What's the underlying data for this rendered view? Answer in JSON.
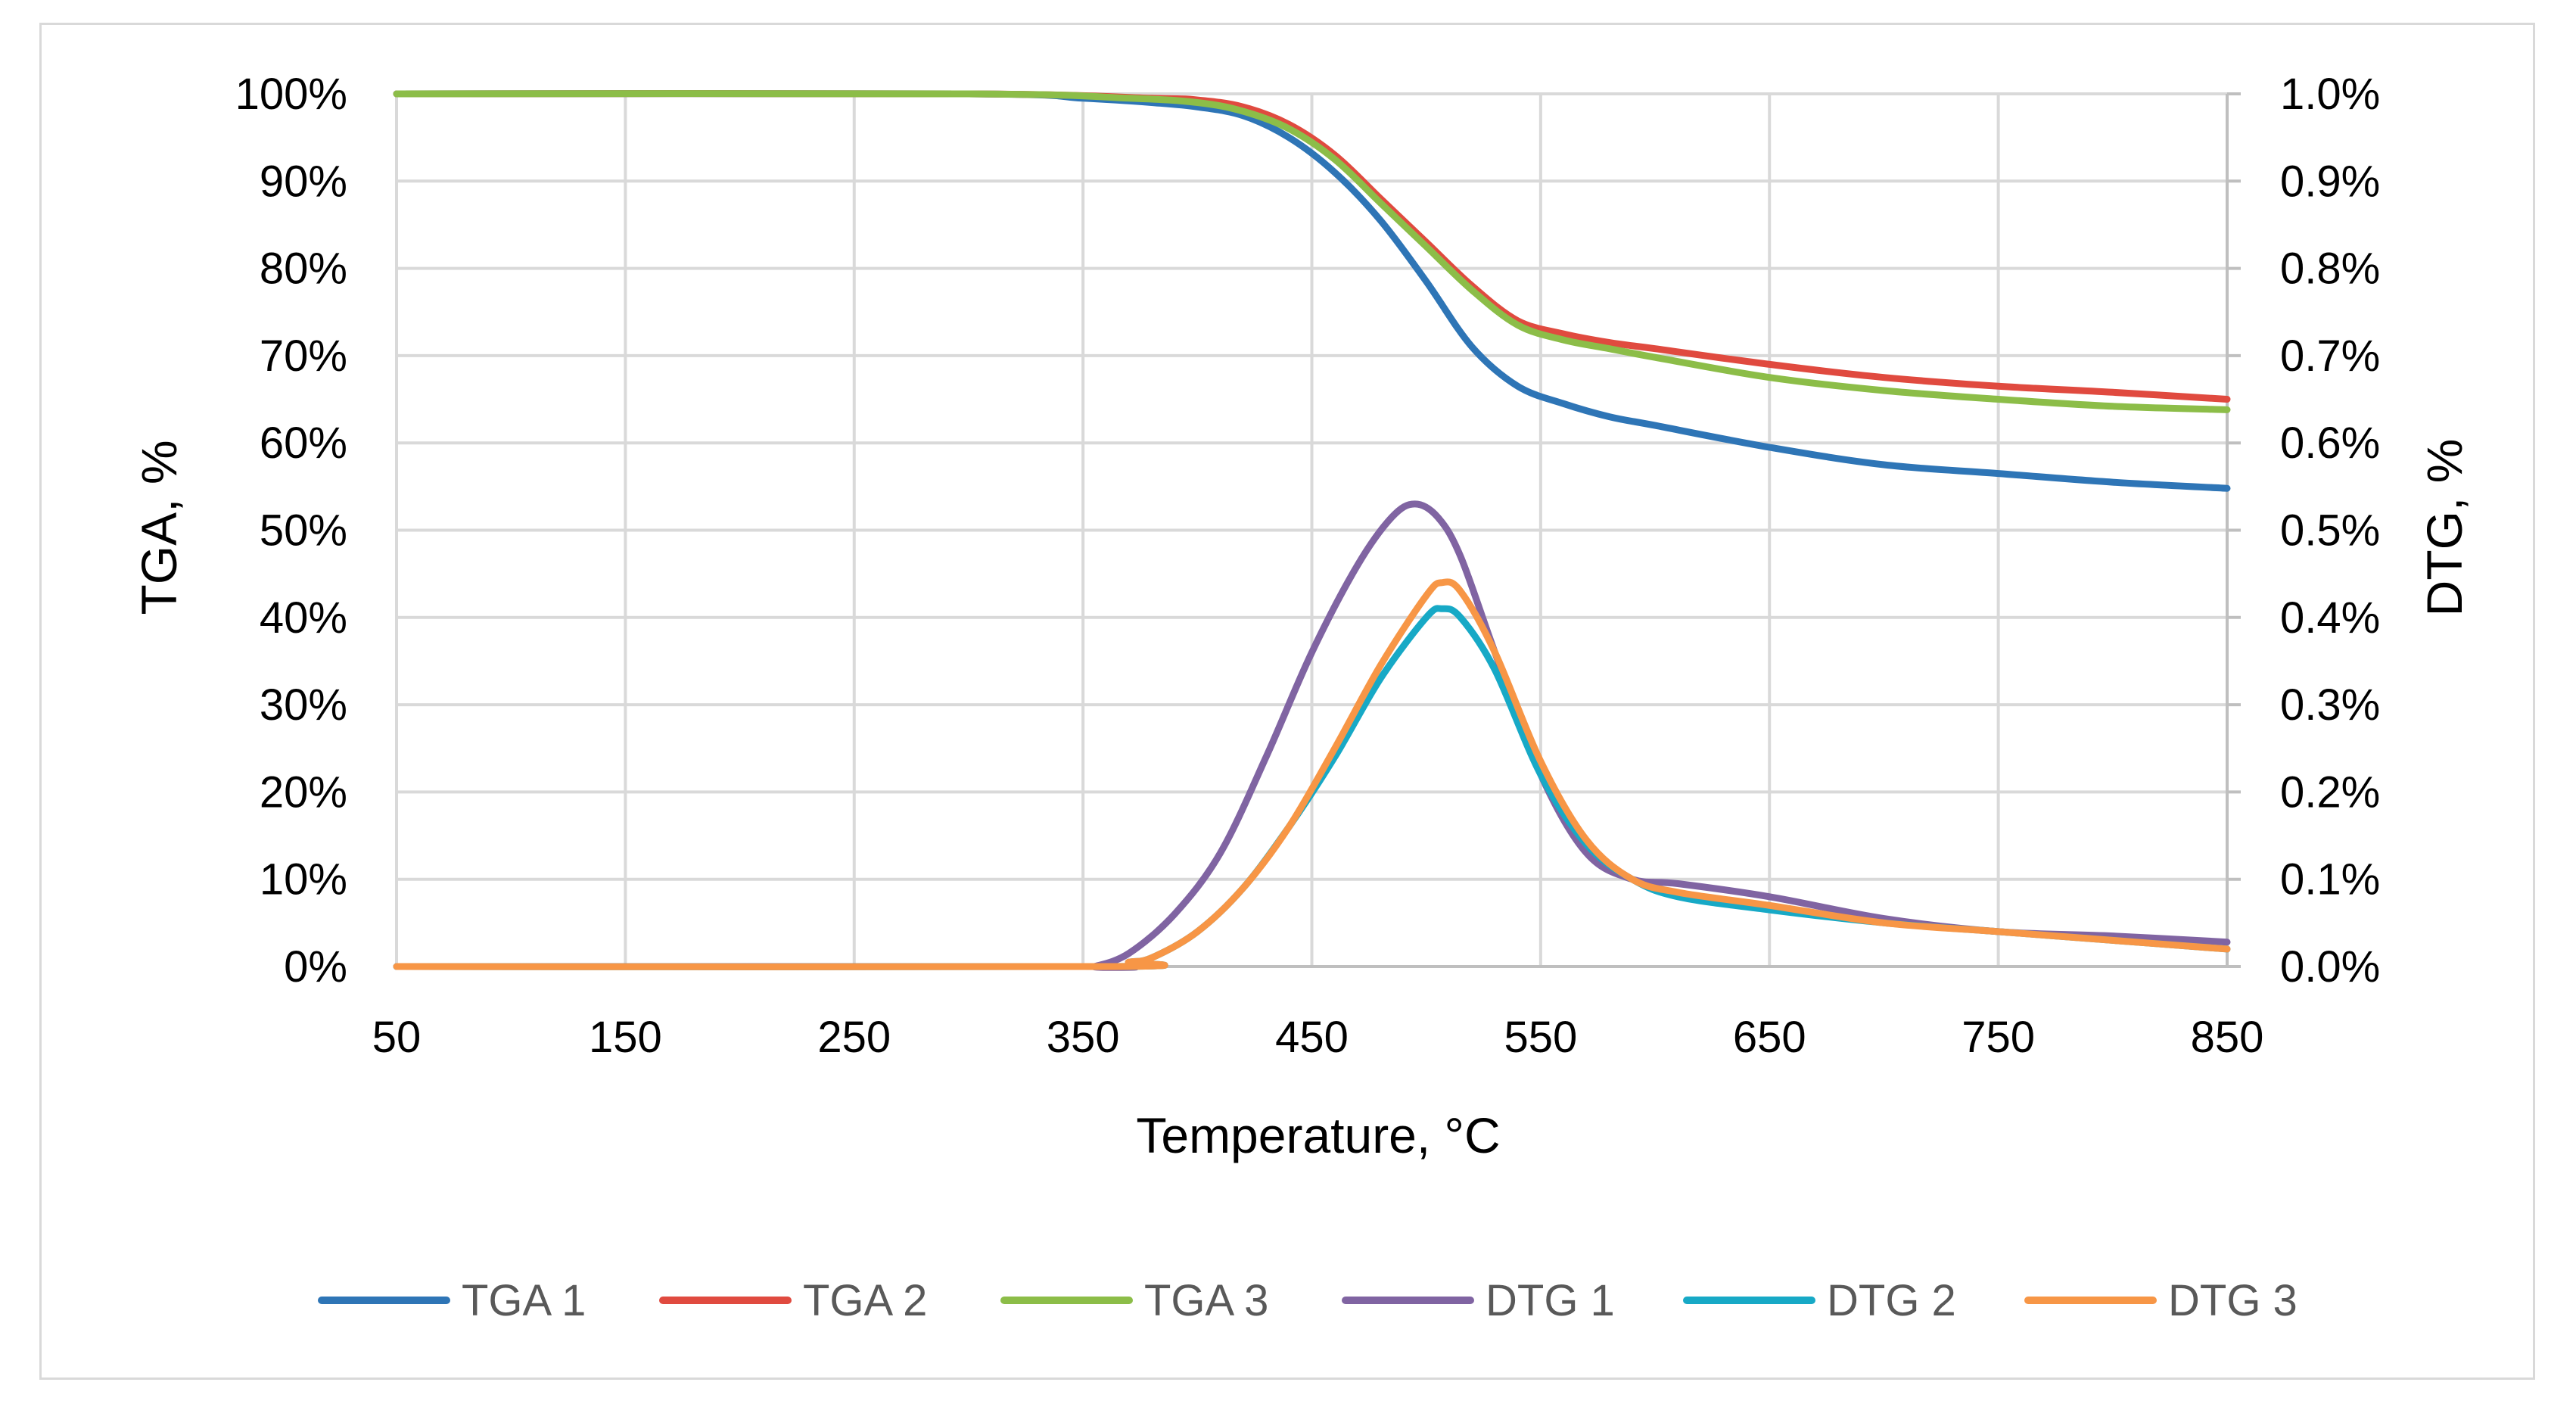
{
  "chart_data": {
    "type": "line",
    "title": "",
    "xlabel": "Temperature, °C",
    "ylabel": "TGA, %",
    "y2label": "DTG, %",
    "xlim": [
      50,
      850
    ],
    "ylim": [
      0,
      100
    ],
    "y2lim": [
      0.0,
      1.0
    ],
    "grid": true,
    "legend_position": "bottom",
    "x_ticks": [
      50,
      150,
      250,
      350,
      450,
      550,
      650,
      750,
      850
    ],
    "x_tick_labels": [
      "50",
      "150",
      "250",
      "350",
      "450",
      "550",
      "650",
      "750",
      "850"
    ],
    "y_ticks": [
      0,
      10,
      20,
      30,
      40,
      50,
      60,
      70,
      80,
      90,
      100
    ],
    "y_tick_labels": [
      "0%",
      "10%",
      "20%",
      "30%",
      "40%",
      "50%",
      "60%",
      "70%",
      "80%",
      "90%",
      "100%"
    ],
    "y2_ticks": [
      0.0,
      0.1,
      0.2,
      0.3,
      0.4,
      0.5,
      0.6,
      0.7,
      0.8,
      0.9,
      1.0
    ],
    "y2_tick_labels": [
      "0.0%",
      "0.1%",
      "0.2%",
      "0.3%",
      "0.4%",
      "0.5%",
      "0.6%",
      "0.7%",
      "0.8%",
      "0.9%",
      "1.0%"
    ],
    "series": [
      {
        "name": "TGA 1",
        "axis": "left",
        "color": "#2e75b6",
        "x": [
          50,
          300,
          350,
          380,
          400,
          420,
          440,
          460,
          480,
          500,
          520,
          540,
          560,
          580,
          600,
          650,
          700,
          750,
          800,
          850
        ],
        "y": [
          100,
          100,
          99.5,
          99,
          98.5,
          97.5,
          95,
          91,
          85.5,
          78.5,
          71,
          66.5,
          64.5,
          63,
          62,
          59.5,
          57.5,
          56.5,
          55.5,
          54.8
        ]
      },
      {
        "name": "TGA 2",
        "axis": "left",
        "color": "#e04a3f",
        "x": [
          50,
          300,
          380,
          400,
          420,
          440,
          460,
          480,
          500,
          520,
          540,
          560,
          580,
          600,
          650,
          700,
          750,
          800,
          850
        ],
        "y": [
          100,
          100,
          99.5,
          99.3,
          98.5,
          96.5,
          93,
          88,
          83,
          78,
          74,
          72.5,
          71.5,
          70.8,
          69,
          67.5,
          66.5,
          65.8,
          65
        ]
      },
      {
        "name": "TGA 3",
        "axis": "left",
        "color": "#8cbd48",
        "x": [
          50,
          300,
          370,
          400,
          420,
          440,
          460,
          480,
          500,
          520,
          540,
          560,
          580,
          600,
          650,
          700,
          750,
          800,
          850
        ],
        "y": [
          100,
          100,
          99.5,
          99,
          98,
          96,
          92.5,
          87.5,
          82.5,
          77.5,
          73.5,
          71.8,
          70.8,
          69.8,
          67.5,
          66,
          65,
          64.2,
          63.8
        ]
      },
      {
        "name": "DTG 1",
        "axis": "right",
        "color": "#8064a2",
        "x": [
          50,
          350,
          355,
          370,
          390,
          410,
          430,
          450,
          470,
          485,
          495,
          505,
          515,
          530,
          550,
          570,
          590,
          610,
          650,
          700,
          750,
          800,
          850
        ],
        "y": [
          0,
          0,
          0,
          0.015,
          0.06,
          0.13,
          0.24,
          0.36,
          0.46,
          0.515,
          0.53,
          0.515,
          0.47,
          0.36,
          0.22,
          0.13,
          0.1,
          0.095,
          0.08,
          0.055,
          0.04,
          0.035,
          0.028
        ]
      },
      {
        "name": "DTG 2",
        "axis": "right",
        "color": "#17a9c6",
        "x": [
          50,
          360,
          370,
          380,
          400,
          420,
          440,
          460,
          480,
          500,
          507,
          515,
          530,
          550,
          570,
          590,
          610,
          650,
          700,
          750,
          800,
          850
        ],
        "y": [
          0,
          0,
          0.005,
          0.01,
          0.04,
          0.09,
          0.16,
          0.24,
          0.33,
          0.4,
          0.41,
          0.4,
          0.34,
          0.22,
          0.14,
          0.1,
          0.08,
          0.065,
          0.05,
          0.04,
          0.03,
          0.02
        ]
      },
      {
        "name": "DTG 3",
        "axis": "right",
        "color": "#f79646",
        "x": [
          50,
          360,
          370,
          380,
          400,
          420,
          440,
          460,
          480,
          500,
          507,
          515,
          530,
          550,
          570,
          590,
          610,
          650,
          700,
          750,
          800,
          850
        ],
        "y": [
          0,
          0,
          0.005,
          0.01,
          0.04,
          0.09,
          0.16,
          0.25,
          0.345,
          0.425,
          0.44,
          0.43,
          0.36,
          0.235,
          0.145,
          0.1,
          0.085,
          0.07,
          0.05,
          0.04,
          0.03,
          0.02
        ]
      }
    ]
  }
}
